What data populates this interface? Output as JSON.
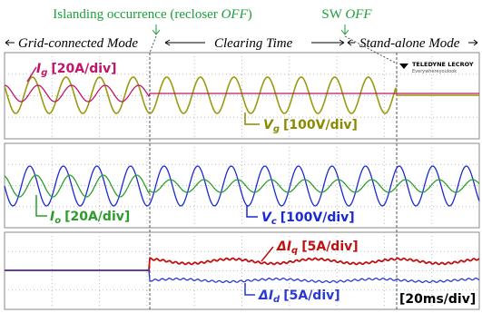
{
  "header": {
    "islanding": {
      "text": "Islanding occurrence (recloser ",
      "emph": "OFF",
      "end": ")"
    },
    "sw": {
      "text": "SW ",
      "emph": "OFF"
    },
    "modes": [
      "Grid-connected Mode",
      "Clearing Time",
      "Stand-alone Mode"
    ]
  },
  "logo": {
    "brand": "TELEDYNE LECROY",
    "tagline": "Everywhereyoulook"
  },
  "channels": [
    {
      "symbol": "I",
      "sub": "g",
      "scale": "[20A/div]"
    },
    {
      "symbol": "V",
      "sub": "g",
      "scale": "[100V/div]"
    },
    {
      "symbol": "I",
      "sub": "o",
      "scale": "[20A/div]"
    },
    {
      "symbol": "V",
      "sub": "c",
      "scale": "[100V/div]"
    },
    {
      "symbol": "ΔI",
      "sub": "q",
      "scale": "[5A/div]"
    },
    {
      "symbol": "ΔI",
      "sub": "d",
      "scale": "[5A/div]"
    }
  ],
  "timebase": "[20ms/div]"
}
